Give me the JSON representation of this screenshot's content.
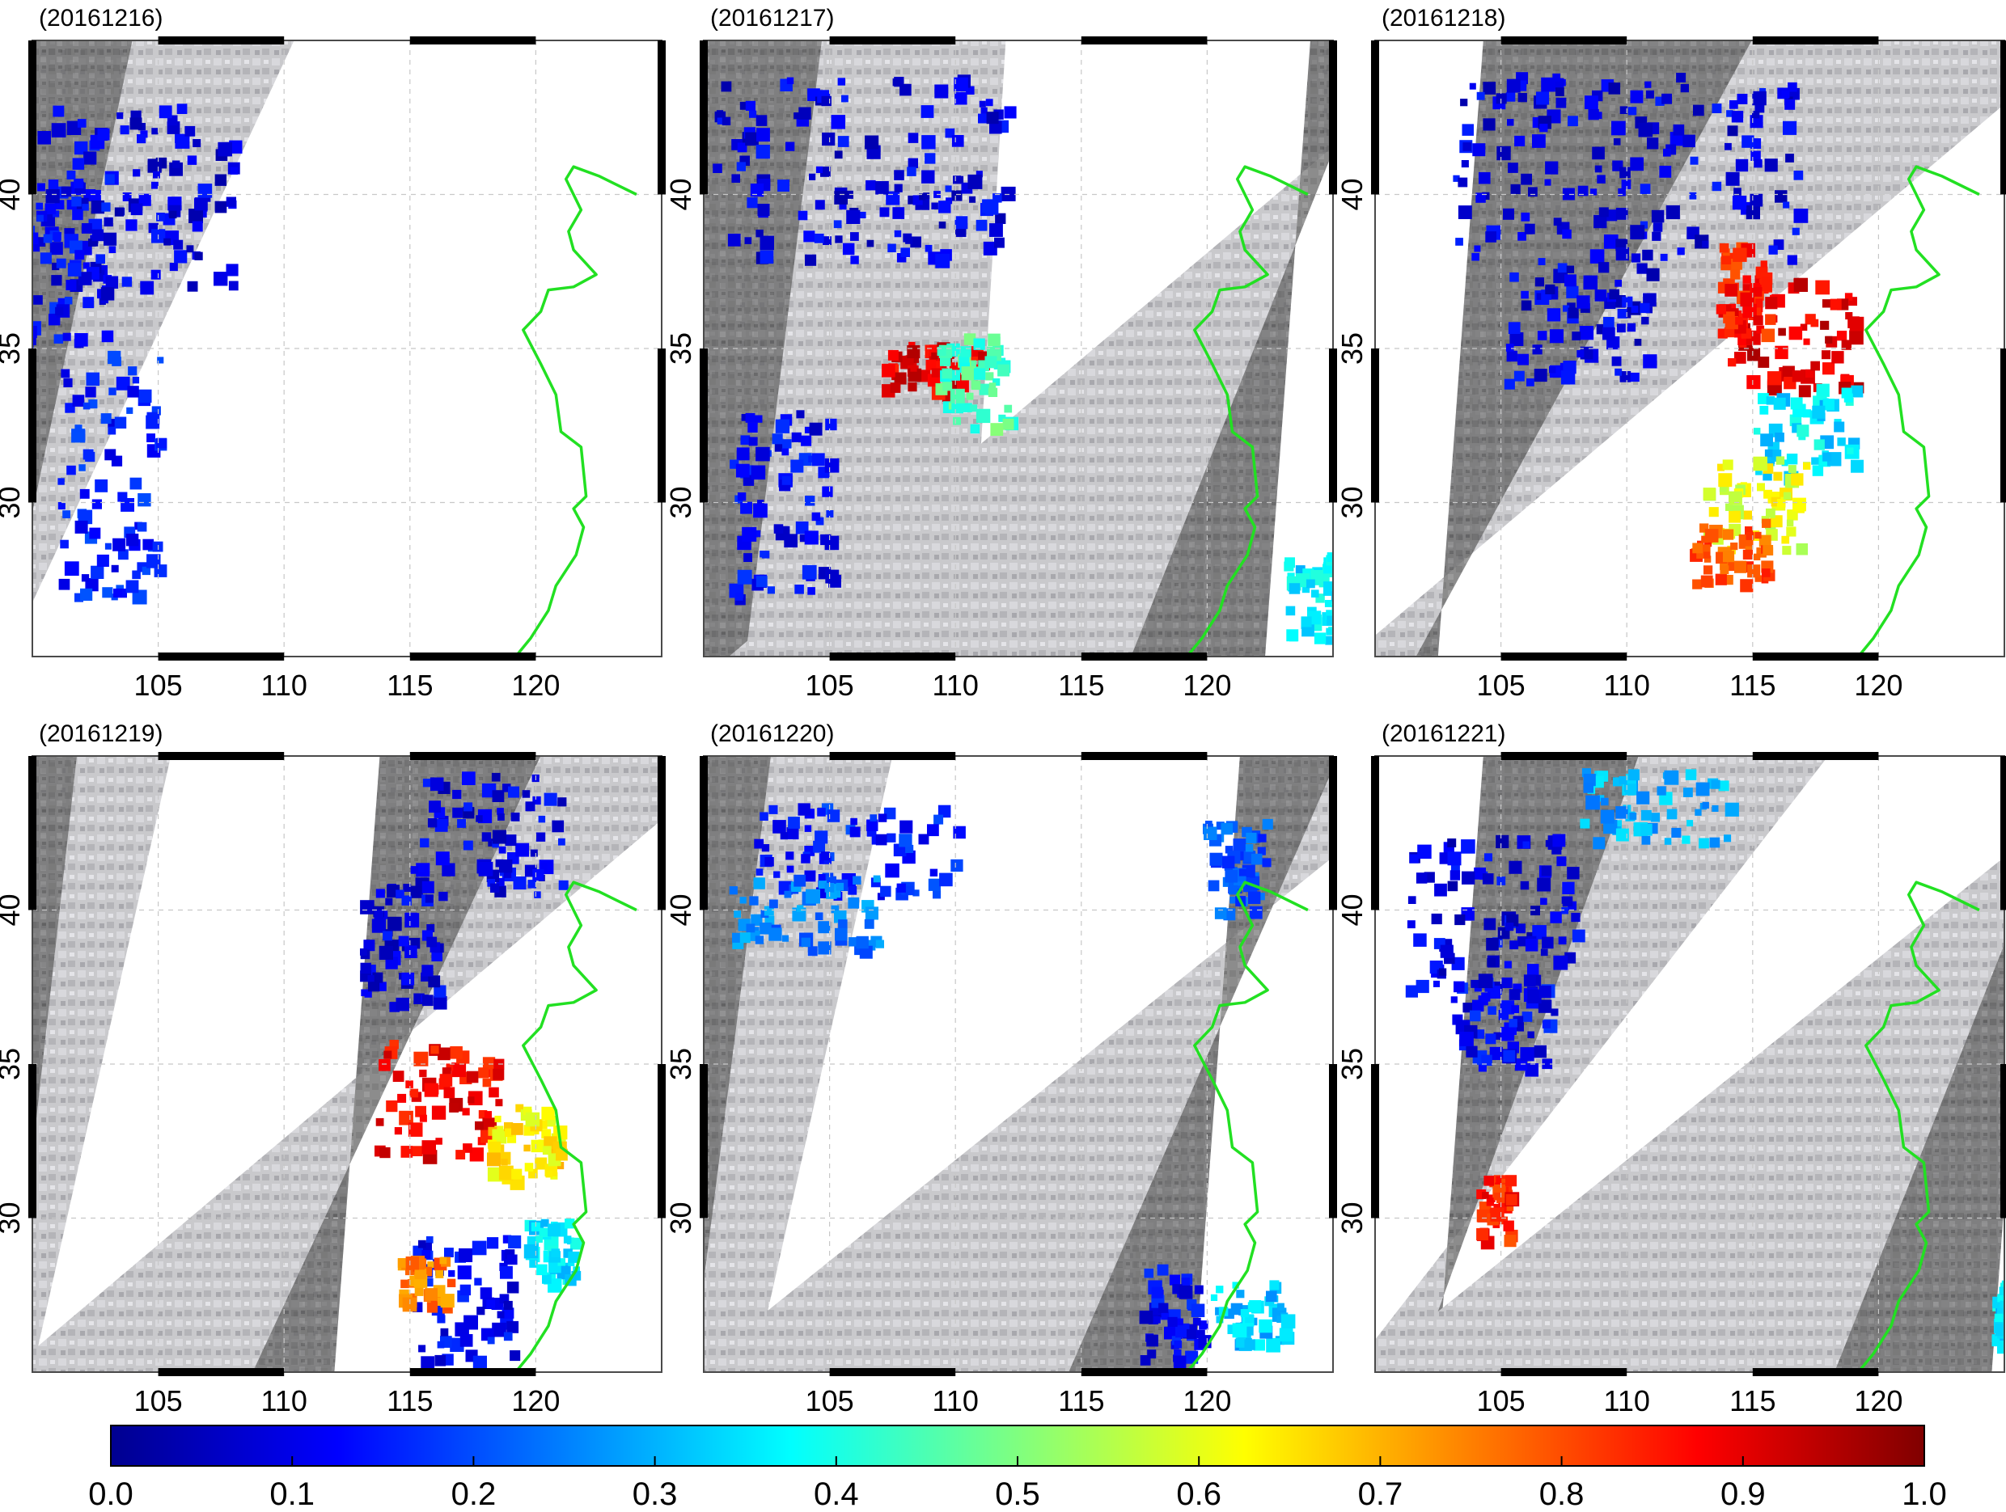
{
  "figure": {
    "lon_ticks": [
      "105",
      "110",
      "115",
      "120"
    ],
    "lat_ticks": [
      "30",
      "35",
      "40"
    ],
    "lon_range": [
      100,
      125
    ],
    "lat_range": [
      25,
      45
    ],
    "colormap": "jet",
    "coastline_color": "#22e022",
    "grid": "dashed"
  },
  "panels": [
    {
      "title": "(20161216)",
      "swaths": [
        [
          -10,
          110.4,
          99
        ]
      ],
      "patches": [
        [
          104,
          40,
          4,
          3,
          0.1
        ],
        [
          103,
          31,
          2,
          4,
          0.15
        ],
        [
          101,
          38,
          2,
          3,
          0.12
        ]
      ]
    },
    {
      "title": "(20161217)",
      "swaths": [
        [
          -10,
          112.0,
          110.5
        ],
        [
          122.3,
          130,
          101
        ]
      ],
      "patches": [
        [
          106,
          41,
          6,
          3,
          0.1
        ],
        [
          109,
          34.5,
          2,
          0.8,
          0.9
        ],
        [
          110.5,
          34,
          1.5,
          1.5,
          0.45
        ],
        [
          103,
          30,
          2,
          3,
          0.12
        ],
        [
          124,
          27,
          1,
          1.5,
          0.35
        ]
      ]
    },
    {
      "title": "(20161218)",
      "swaths": [
        [
          102.5,
          128.0,
          99
        ]
      ],
      "patches": [
        [
          110,
          41,
          7,
          3,
          0.1
        ],
        [
          116.5,
          35.5,
          2.5,
          1.8,
          0.9
        ],
        [
          114.5,
          37,
          1,
          1.5,
          0.85
        ],
        [
          117,
          32.5,
          2,
          1.5,
          0.35
        ],
        [
          115,
          30,
          2,
          1.5,
          0.6
        ],
        [
          114,
          28.5,
          1.5,
          1,
          0.8
        ],
        [
          108,
          36,
          3,
          2,
          0.1
        ]
      ]
    },
    {
      "title": "(20161219)",
      "swaths": [
        [
          -10,
          105.5,
          100
        ],
        [
          112,
          128,
          99
        ]
      ],
      "patches": [
        [
          116,
          34,
          2.5,
          1.8,
          0.88
        ],
        [
          119.5,
          32.5,
          1.5,
          1.2,
          0.65
        ],
        [
          118,
          42.5,
          3,
          2,
          0.1
        ],
        [
          114.5,
          39,
          1.5,
          2,
          0.1
        ],
        [
          117,
          27.5,
          2,
          2,
          0.12
        ],
        [
          115.5,
          28,
          1,
          0.8,
          0.75
        ],
        [
          120.5,
          29,
          1,
          1,
          0.35
        ]
      ]
    },
    {
      "title": "(20161220)",
      "swaths": [
        [
          -10,
          107.5,
          102
        ],
        [
          119.5,
          130,
          99.5
        ]
      ],
      "patches": [
        [
          106,
          42,
          4,
          1.5,
          0.15
        ],
        [
          104,
          40,
          3,
          1.2,
          0.25
        ],
        [
          121.5,
          27,
          1.5,
          1,
          0.32
        ],
        [
          118.5,
          27,
          1.2,
          1.5,
          0.12
        ],
        [
          121,
          41.5,
          1.2,
          1.5,
          0.2
        ]
      ]
    },
    {
      "title": "(20161221)",
      "swaths": [
        [
          102.5,
          118.0,
          99
        ],
        [
          124.5,
          130,
          99.5
        ]
      ],
      "patches": [
        [
          104.5,
          40,
          3.5,
          2.5,
          0.1
        ],
        [
          105,
          36.5,
          2,
          1.5,
          0.12
        ],
        [
          104.6,
          30.4,
          0.6,
          1,
          0.85
        ],
        [
          111,
          43.5,
          3,
          1.2,
          0.3
        ],
        [
          125,
          27,
          0.5,
          1,
          0.35
        ]
      ]
    }
  ],
  "colorbar": {
    "ticks": [
      "0.0",
      "0.1",
      "0.2",
      "0.3",
      "0.4",
      "0.5",
      "0.6",
      "0.7",
      "0.8",
      "0.9",
      "1.0"
    ],
    "range": [
      0.0,
      1.0
    ]
  }
}
